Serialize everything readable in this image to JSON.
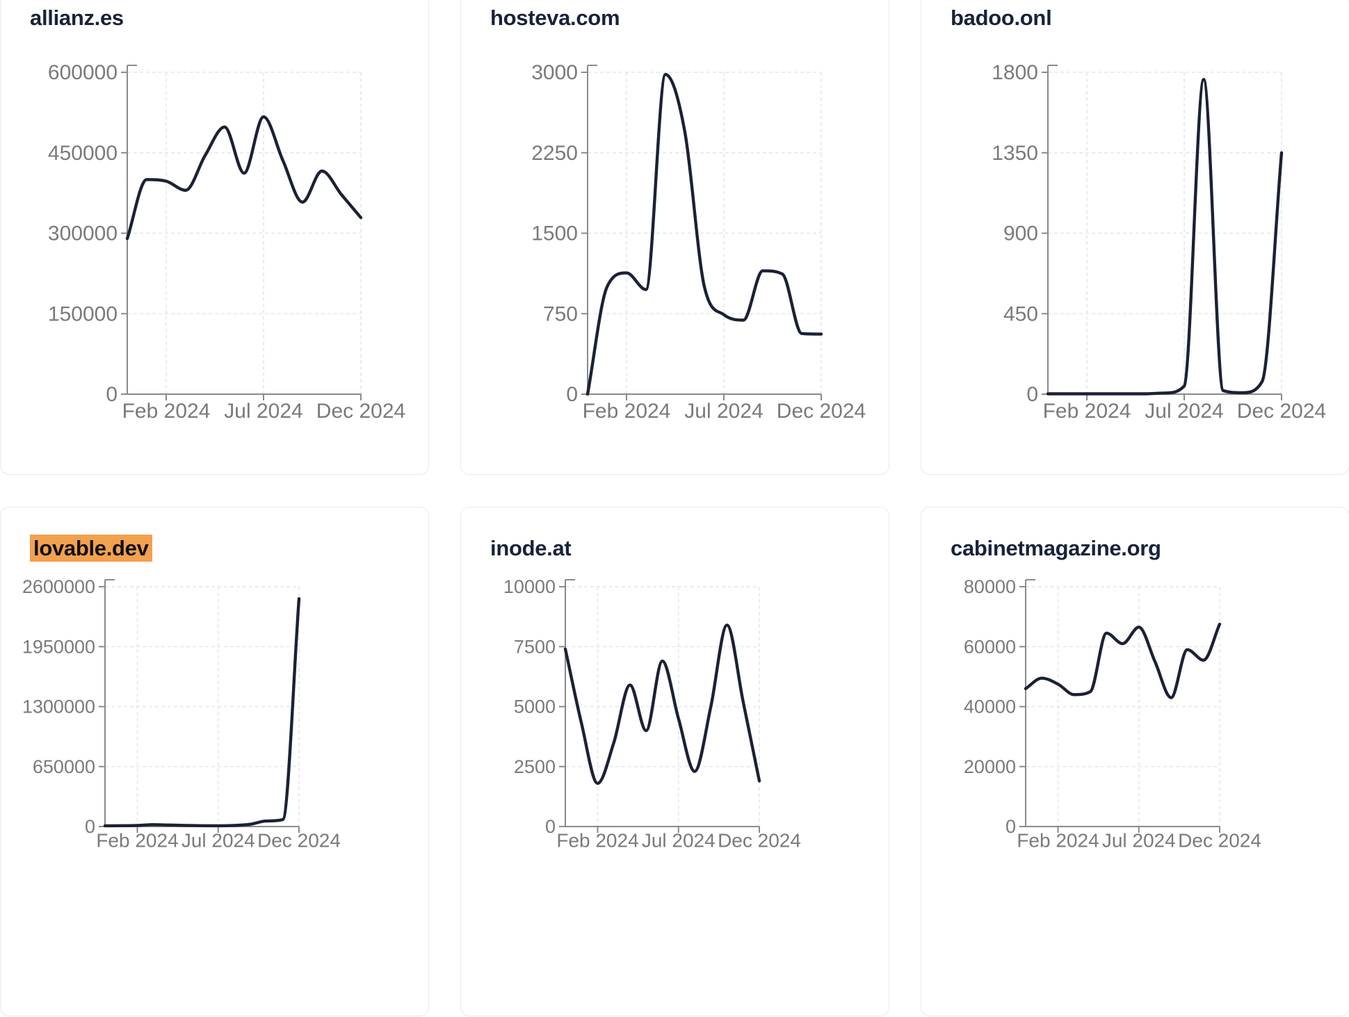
{
  "page": {
    "background": "#ffffff",
    "card_background": "#ffffff",
    "card_border_color": "#e6e9ed"
  },
  "style": {
    "line_color": "#1b2135",
    "title_color": "#18223a",
    "tick_label_color": "#7a7a7a",
    "axis_color": "#8a8a8a",
    "grid_color": "#e5e6e9",
    "highlight_bg": "#f2a14f",
    "highlight_text": "#0f0f10"
  },
  "chart_data": [
    {
      "type": "line",
      "title": "allianz.es",
      "highlighted": false,
      "x": [
        "Dec 2023",
        "Jan 2024",
        "Feb 2024",
        "Mar 2024",
        "Apr 2024",
        "May 2024",
        "Jun 2024",
        "Jul 2024",
        "Aug 2024",
        "Sep 2024",
        "Oct 2024",
        "Nov 2024",
        "Dec 2024"
      ],
      "values": [
        290000,
        400000,
        397000,
        380000,
        445000,
        498000,
        412000,
        517000,
        435000,
        358000,
        416000,
        372000,
        329000
      ],
      "yticks": [
        0,
        150000,
        300000,
        450000,
        600000
      ],
      "ylim": [
        0,
        600000
      ],
      "x_tick_labels": [
        "Feb 2024",
        "Jul 2024",
        "Dec 2024"
      ],
      "x_tick_indices": [
        2,
        7,
        12
      ],
      "grid": true,
      "legend": null
    },
    {
      "type": "line",
      "title": "hosteva.com",
      "highlighted": false,
      "x": [
        "Dec 2023",
        "Jan 2024",
        "Feb 2024",
        "Mar 2024",
        "Apr 2024",
        "May 2024",
        "Jun 2024",
        "Jul 2024",
        "Aug 2024",
        "Sep 2024",
        "Oct 2024",
        "Nov 2024",
        "Dec 2024"
      ],
      "values": [
        0,
        1000,
        1130,
        975,
        2980,
        2440,
        1000,
        740,
        690,
        1150,
        1120,
        565,
        560
      ],
      "yticks": [
        0,
        750,
        1500,
        2250,
        3000
      ],
      "ylim": [
        0,
        3000
      ],
      "x_tick_labels": [
        "Feb 2024",
        "Jul 2024",
        "Dec 2024"
      ],
      "x_tick_indices": [
        2,
        7,
        12
      ],
      "grid": true,
      "legend": null
    },
    {
      "type": "line",
      "title": "badoo.onl",
      "highlighted": false,
      "x": [
        "Dec 2023",
        "Jan 2024",
        "Feb 2024",
        "Mar 2024",
        "Apr 2024",
        "May 2024",
        "Jun 2024",
        "Jul 2024",
        "Aug 2024",
        "Sep 2024",
        "Oct 2024",
        "Nov 2024",
        "Dec 2024"
      ],
      "values": [
        2,
        2,
        2,
        2,
        2,
        2,
        6,
        45,
        1760,
        20,
        8,
        70,
        1350
      ],
      "yticks": [
        0,
        450,
        900,
        1350,
        1800
      ],
      "ylim": [
        0,
        1800
      ],
      "x_tick_labels": [
        "Feb 2024",
        "Jul 2024",
        "Dec 2024"
      ],
      "x_tick_indices": [
        2,
        7,
        12
      ],
      "grid": true,
      "legend": null
    },
    {
      "type": "line",
      "title": "lovable.dev",
      "highlighted": true,
      "x": [
        "Dec 2023",
        "Jan 2024",
        "Feb 2024",
        "Mar 2024",
        "Apr 2024",
        "May 2024",
        "Jun 2024",
        "Jul 2024",
        "Aug 2024",
        "Sep 2024",
        "Oct 2024",
        "Nov 2024",
        "Dec 2024"
      ],
      "values": [
        8000,
        9000,
        12000,
        20000,
        16000,
        12000,
        9000,
        8000,
        12000,
        25000,
        60000,
        75000,
        2470000
      ],
      "yticks": [
        0,
        650000,
        1300000,
        1950000,
        2600000
      ],
      "ylim": [
        0,
        2600000
      ],
      "x_tick_labels": [
        "Feb 2024",
        "Jul 2024",
        "Dec 2024"
      ],
      "x_tick_indices": [
        2,
        7,
        12
      ],
      "grid": true,
      "legend": null
    },
    {
      "type": "line",
      "title": "inode.at",
      "highlighted": false,
      "x": [
        "Dec 2023",
        "Jan 2024",
        "Feb 2024",
        "Mar 2024",
        "Apr 2024",
        "May 2024",
        "Jun 2024",
        "Jul 2024",
        "Aug 2024",
        "Sep 2024",
        "Oct 2024",
        "Nov 2024",
        "Dec 2024"
      ],
      "values": [
        7400,
        4300,
        1800,
        3500,
        5900,
        4000,
        6900,
        4500,
        2300,
        5000,
        8400,
        5200,
        1900
      ],
      "yticks": [
        0,
        2500,
        5000,
        7500,
        10000
      ],
      "ylim": [
        0,
        10000
      ],
      "x_tick_labels": [
        "Feb 2024",
        "Jul 2024",
        "Dec 2024"
      ],
      "x_tick_indices": [
        2,
        7,
        12
      ],
      "grid": true,
      "legend": null
    },
    {
      "type": "line",
      "title": "cabinetmagazine.org",
      "highlighted": false,
      "x": [
        "Dec 2023",
        "Jan 2024",
        "Feb 2024",
        "Mar 2024",
        "Apr 2024",
        "May 2024",
        "Jun 2024",
        "Jul 2024",
        "Aug 2024",
        "Sep 2024",
        "Oct 2024",
        "Nov 2024",
        "Dec 2024"
      ],
      "values": [
        46000,
        49500,
        47500,
        44000,
        45000,
        64500,
        61000,
        66500,
        55000,
        43000,
        59000,
        55500,
        67500
      ],
      "yticks": [
        0,
        20000,
        40000,
        60000,
        80000
      ],
      "ylim": [
        0,
        80000
      ],
      "x_tick_labels": [
        "Feb 2024",
        "Jul 2024",
        "Dec 2024"
      ],
      "x_tick_indices": [
        2,
        7,
        12
      ],
      "grid": true,
      "legend": null
    }
  ]
}
